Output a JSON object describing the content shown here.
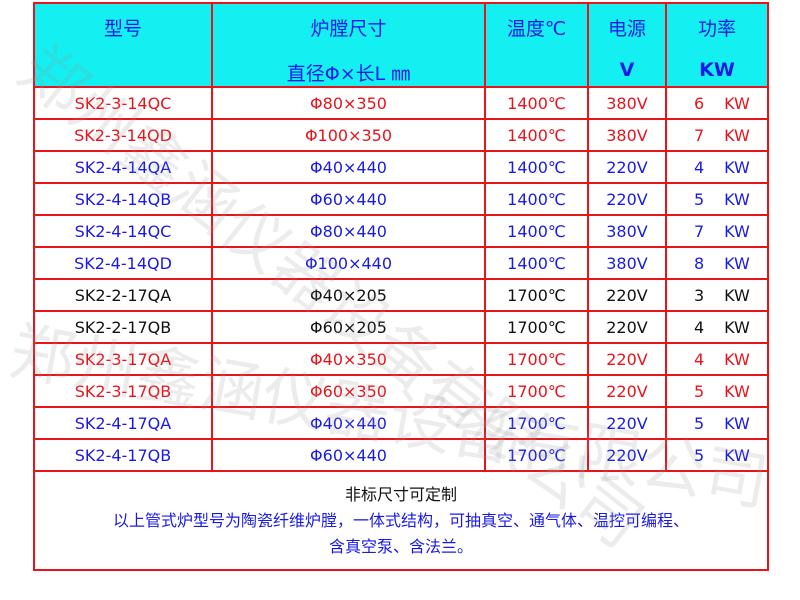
{
  "watermark": "郑州鑫涵仪器设备有限公司",
  "header": {
    "model": "型号",
    "size_l1": "炉膛尺寸",
    "size_l2": "直径Φ×长L ㎜",
    "temp": "温度℃",
    "power_src": "电源",
    "power_src_unit": "V",
    "power": "功率",
    "power_unit": "KW"
  },
  "colors": {
    "red": "#e8141c",
    "blue": "#1a1ae6",
    "header_bg": "#14f0f2"
  },
  "rows": [
    {
      "color": "red",
      "model": "SK2-3-14QC",
      "size": "Φ80×350",
      "temp": "1400℃",
      "volt": "380V",
      "kw": "6",
      "unit": "KW"
    },
    {
      "color": "red",
      "model": "SK2-3-14QD",
      "size": "Φ100×350",
      "temp": "1400℃",
      "volt": "380V",
      "kw": "7",
      "unit": "KW"
    },
    {
      "color": "blue",
      "model": "SK2-4-14QA",
      "size": "Φ40×440",
      "temp": "1400℃",
      "volt": "220V",
      "kw": "4",
      "unit": "KW"
    },
    {
      "color": "blue",
      "model": "SK2-4-14QB",
      "size": "Φ60×440",
      "temp": "1400℃",
      "volt": "220V",
      "kw": "5",
      "unit": "KW"
    },
    {
      "color": "blue",
      "model": "SK2-4-14QC",
      "size": "Φ80×440",
      "temp": "1400℃",
      "volt": "380V",
      "kw": "7",
      "unit": "KW"
    },
    {
      "color": "blue",
      "model": "SK2-4-14QD",
      "size": "Φ100×440",
      "temp": "1400℃",
      "volt": "380V",
      "kw": "8",
      "unit": "KW"
    },
    {
      "color": "black",
      "model": "SK2-2-17QA",
      "size": "Φ40×205",
      "temp": "1700℃",
      "volt": "220V",
      "kw": "3",
      "unit": "KW"
    },
    {
      "color": "black",
      "model": "SK2-2-17QB",
      "size": "Φ60×205",
      "temp": "1700℃",
      "volt": "220V",
      "kw": "4",
      "unit": "KW"
    },
    {
      "color": "red",
      "model": "SK2-3-17QA",
      "size": "Φ40×350",
      "temp": "1700℃",
      "volt": "220V",
      "kw": "4",
      "unit": "KW"
    },
    {
      "color": "red",
      "model": "SK2-3-17QB",
      "size": "Φ60×350",
      "temp": "1700℃",
      "volt": "220V",
      "kw": "5",
      "unit": "KW"
    },
    {
      "color": "blue",
      "model": "SK2-4-17QA",
      "size": "Φ40×440",
      "temp": "1700℃",
      "volt": "220V",
      "kw": "5",
      "unit": "KW"
    },
    {
      "color": "blue",
      "model": "SK2-4-17QB",
      "size": "Φ60×440",
      "temp": "1700℃",
      "volt": "220V",
      "kw": "5",
      "unit": "KW"
    }
  ],
  "footer": {
    "line1": "非标尺寸可定制",
    "line2": "以上管式炉型号为陶瓷纤维炉膛，一体式结构，可抽真空、通气体、温控可编程、",
    "line3": "含真空泵、含法兰。"
  }
}
